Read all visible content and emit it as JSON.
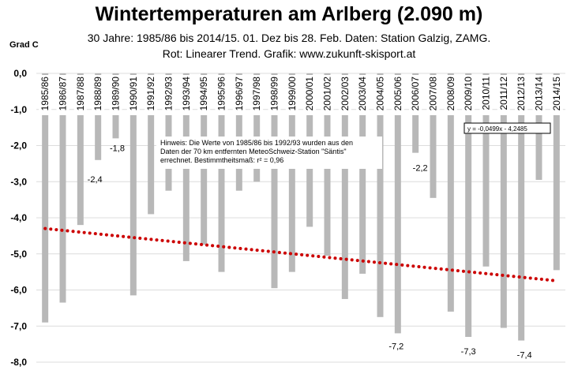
{
  "chart_data": {
    "type": "bar",
    "title": "Wintertemperaturen am Arlberg (2.090 m)",
    "subtitle_lines": [
      "30 Jahre: 1985/86 bis 2014/15. 01. Dez bis 28. Feb. Daten: Station Galzig, ZAMG.",
      "Rot: Linearer Trend. Grafik: www.zukunft-skisport.at"
    ],
    "ylabel": "Grad C",
    "ylim": [
      -8,
      0
    ],
    "y_ticks": [
      "0,0",
      "-1,0",
      "-2,0",
      "-3,0",
      "-4,0",
      "-5,0",
      "-6,0",
      "-7,0",
      "-8,0"
    ],
    "grid": true,
    "categories": [
      "1985/86",
      "1986/87",
      "1987/88",
      "1988/89",
      "1989/90",
      "1990/91",
      "1991/92",
      "1992/93",
      "1993/94",
      "1994/95",
      "1995/96",
      "1996/97",
      "1997/98",
      "1998/99",
      "1999/00",
      "2000/01",
      "2001/02",
      "2002/03",
      "2003/04",
      "2004/05",
      "2005/06",
      "2006/07",
      "2007/08",
      "2008/09",
      "2009/10",
      "2010/11",
      "2011/12",
      "2012/13",
      "2013/14",
      "2014/15"
    ],
    "values": [
      -6.9,
      -6.35,
      -4.2,
      -2.4,
      -1.8,
      -6.15,
      -3.9,
      -3.25,
      -5.2,
      -4.75,
      -5.5,
      -3.25,
      -3.0,
      -5.95,
      -5.5,
      -4.25,
      -5.05,
      -6.25,
      -5.55,
      -6.75,
      -7.2,
      -2.2,
      -3.45,
      -6.6,
      -7.3,
      -5.35,
      -7.05,
      -7.4,
      -2.95,
      -5.45
    ],
    "data_labels": [
      {
        "index": 3,
        "text": "-2,4"
      },
      {
        "index": 4,
        "text": "-1,8"
      },
      {
        "index": 20,
        "text": "-7,2"
      },
      {
        "index": 21,
        "text": "-2,2"
      },
      {
        "index": 24,
        "text": "-7,3"
      },
      {
        "index": 27,
        "text": "-7,4"
      }
    ],
    "trend": {
      "slope": -0.0499,
      "intercept": -4.2485,
      "color": "#cc0000",
      "equation": "y = -0,0499x - 4,2485"
    },
    "bar_color": "#b8b8b8",
    "annotation": [
      "Hinweis: Die Werte von 1985/86 bis 1992/93 wurden aus den",
      "Daten der 70 km entfernten MeteoSchweiz-Station \"Säntis\"",
      "errechnet. Bestimmtheitsmaß: r² = 0,96"
    ]
  }
}
